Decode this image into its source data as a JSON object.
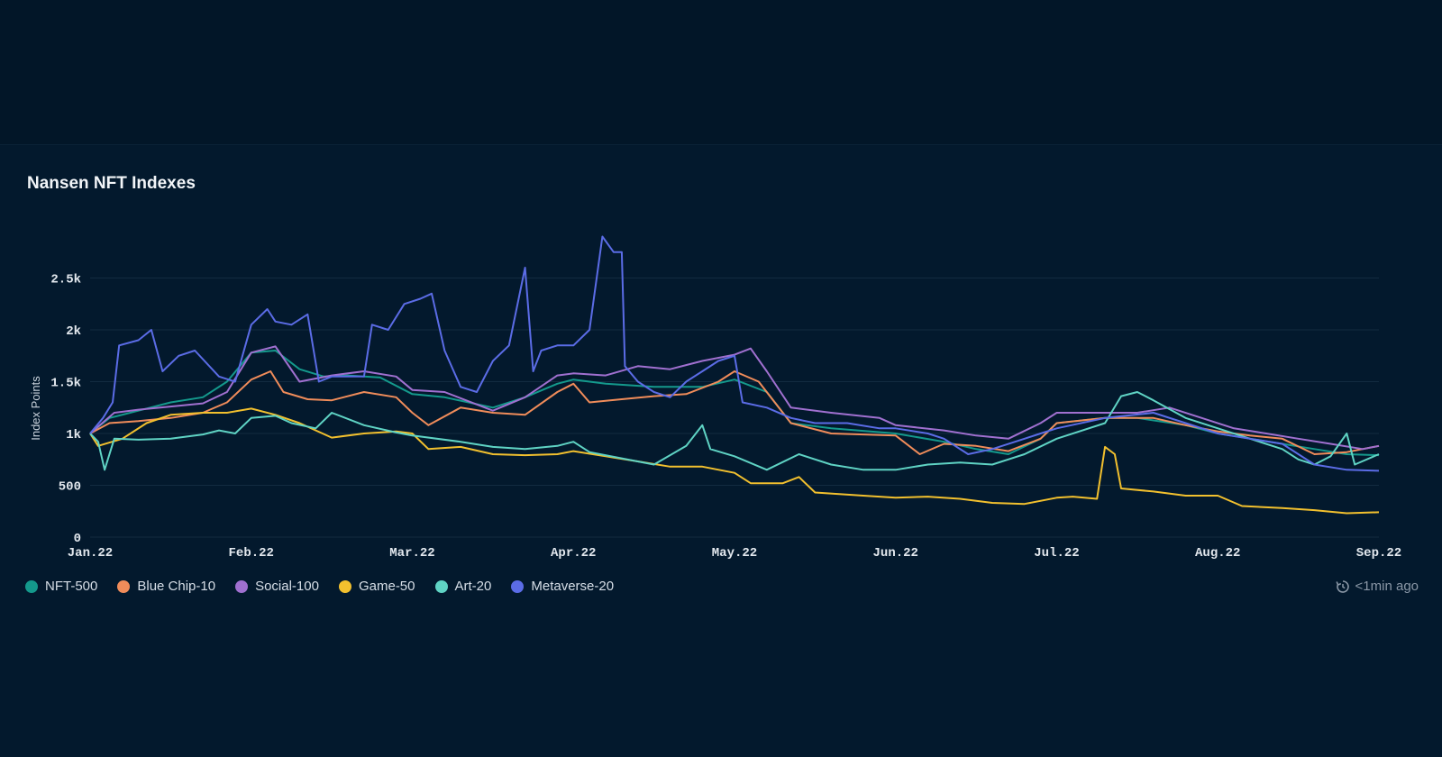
{
  "chart_data": {
    "type": "line",
    "title": "Nansen NFT Indexes",
    "ylabel": "Index Points",
    "xlabel": "",
    "x_ticks": [
      "Jan.22",
      "Feb.22",
      "Mar.22",
      "Apr.22",
      "May.22",
      "Jun.22",
      "Jul.22",
      "Aug.22",
      "Sep.22"
    ],
    "y_ticks": [
      {
        "value": 0,
        "label": "0"
      },
      {
        "value": 500,
        "label": "500"
      },
      {
        "value": 1000,
        "label": "1k"
      },
      {
        "value": 1500,
        "label": "1.5k"
      },
      {
        "value": 2000,
        "label": "2k"
      },
      {
        "value": 2500,
        "label": "2.5k"
      }
    ],
    "ylim": [
      0,
      3000
    ],
    "xlim": [
      0,
      8
    ],
    "grid": true,
    "legend_position": "bottom-left",
    "series": [
      {
        "name": "NFT-500",
        "color": "#14998c",
        "points": [
          [
            0,
            1000
          ],
          [
            0.12,
            1150
          ],
          [
            0.3,
            1220
          ],
          [
            0.5,
            1300
          ],
          [
            0.7,
            1350
          ],
          [
            0.85,
            1500
          ],
          [
            1,
            1780
          ],
          [
            1.15,
            1800
          ],
          [
            1.3,
            1620
          ],
          [
            1.45,
            1550
          ],
          [
            1.6,
            1560
          ],
          [
            1.8,
            1540
          ],
          [
            2,
            1380
          ],
          [
            2.2,
            1350
          ],
          [
            2.5,
            1250
          ],
          [
            2.7,
            1350
          ],
          [
            2.9,
            1480
          ],
          [
            3,
            1520
          ],
          [
            3.2,
            1480
          ],
          [
            3.5,
            1450
          ],
          [
            3.8,
            1450
          ],
          [
            4,
            1520
          ],
          [
            4.2,
            1400
          ],
          [
            4.35,
            1100
          ],
          [
            4.6,
            1050
          ],
          [
            5,
            1000
          ],
          [
            5.3,
            920
          ],
          [
            5.5,
            850
          ],
          [
            5.7,
            800
          ],
          [
            5.9,
            950
          ],
          [
            6,
            1100
          ],
          [
            6.3,
            1150
          ],
          [
            6.5,
            1150
          ],
          [
            6.8,
            1080
          ],
          [
            7,
            1000
          ],
          [
            7.2,
            950
          ],
          [
            7.4,
            900
          ],
          [
            7.6,
            850
          ],
          [
            7.8,
            800
          ],
          [
            8,
            790
          ]
        ]
      },
      {
        "name": "Blue Chip-10",
        "color": "#f08c5a",
        "points": [
          [
            0,
            1000
          ],
          [
            0.12,
            1100
          ],
          [
            0.3,
            1120
          ],
          [
            0.5,
            1150
          ],
          [
            0.7,
            1200
          ],
          [
            0.85,
            1300
          ],
          [
            1,
            1520
          ],
          [
            1.12,
            1600
          ],
          [
            1.2,
            1400
          ],
          [
            1.35,
            1330
          ],
          [
            1.5,
            1320
          ],
          [
            1.7,
            1400
          ],
          [
            1.9,
            1350
          ],
          [
            2,
            1200
          ],
          [
            2.1,
            1080
          ],
          [
            2.3,
            1250
          ],
          [
            2.5,
            1200
          ],
          [
            2.7,
            1180
          ],
          [
            2.9,
            1400
          ],
          [
            3,
            1480
          ],
          [
            3.1,
            1300
          ],
          [
            3.3,
            1330
          ],
          [
            3.5,
            1360
          ],
          [
            3.7,
            1380
          ],
          [
            3.9,
            1500
          ],
          [
            4,
            1600
          ],
          [
            4.15,
            1500
          ],
          [
            4.35,
            1100
          ],
          [
            4.6,
            1000
          ],
          [
            5,
            980
          ],
          [
            5.15,
            800
          ],
          [
            5.3,
            900
          ],
          [
            5.5,
            880
          ],
          [
            5.7,
            830
          ],
          [
            5.9,
            950
          ],
          [
            6,
            1100
          ],
          [
            6.3,
            1150
          ],
          [
            6.6,
            1150
          ],
          [
            6.8,
            1080
          ],
          [
            7,
            1020
          ],
          [
            7.2,
            980
          ],
          [
            7.4,
            950
          ],
          [
            7.6,
            800
          ],
          [
            7.8,
            820
          ],
          [
            8,
            880
          ]
        ]
      },
      {
        "name": "Social-100",
        "color": "#a070d0",
        "points": [
          [
            0,
            1000
          ],
          [
            0.15,
            1200
          ],
          [
            0.3,
            1230
          ],
          [
            0.5,
            1260
          ],
          [
            0.7,
            1290
          ],
          [
            0.85,
            1400
          ],
          [
            1,
            1780
          ],
          [
            1.15,
            1840
          ],
          [
            1.3,
            1500
          ],
          [
            1.5,
            1560
          ],
          [
            1.7,
            1600
          ],
          [
            1.9,
            1550
          ],
          [
            2,
            1420
          ],
          [
            2.2,
            1400
          ],
          [
            2.5,
            1220
          ],
          [
            2.7,
            1350
          ],
          [
            2.9,
            1560
          ],
          [
            3,
            1580
          ],
          [
            3.2,
            1560
          ],
          [
            3.4,
            1650
          ],
          [
            3.6,
            1620
          ],
          [
            3.8,
            1700
          ],
          [
            4,
            1760
          ],
          [
            4.1,
            1820
          ],
          [
            4.2,
            1600
          ],
          [
            4.35,
            1250
          ],
          [
            4.6,
            1200
          ],
          [
            4.9,
            1150
          ],
          [
            5,
            1080
          ],
          [
            5.3,
            1030
          ],
          [
            5.5,
            980
          ],
          [
            5.7,
            950
          ],
          [
            5.9,
            1100
          ],
          [
            6,
            1200
          ],
          [
            6.3,
            1200
          ],
          [
            6.5,
            1200
          ],
          [
            6.7,
            1250
          ],
          [
            6.9,
            1150
          ],
          [
            7.1,
            1050
          ],
          [
            7.3,
            1000
          ],
          [
            7.5,
            950
          ],
          [
            7.7,
            900
          ],
          [
            7.9,
            850
          ],
          [
            8,
            880
          ]
        ]
      },
      {
        "name": "Game-50",
        "color": "#f2c02e",
        "points": [
          [
            0,
            1000
          ],
          [
            0.05,
            880
          ],
          [
            0.2,
            950
          ],
          [
            0.35,
            1100
          ],
          [
            0.5,
            1180
          ],
          [
            0.7,
            1200
          ],
          [
            0.85,
            1200
          ],
          [
            1,
            1240
          ],
          [
            1.15,
            1180
          ],
          [
            1.3,
            1100
          ],
          [
            1.5,
            960
          ],
          [
            1.7,
            1000
          ],
          [
            1.9,
            1020
          ],
          [
            2,
            1000
          ],
          [
            2.1,
            850
          ],
          [
            2.3,
            870
          ],
          [
            2.5,
            800
          ],
          [
            2.7,
            790
          ],
          [
            2.9,
            800
          ],
          [
            3,
            830
          ],
          [
            3.2,
            780
          ],
          [
            3.4,
            730
          ],
          [
            3.6,
            680
          ],
          [
            3.8,
            680
          ],
          [
            4,
            620
          ],
          [
            4.1,
            520
          ],
          [
            4.3,
            520
          ],
          [
            4.4,
            580
          ],
          [
            4.5,
            430
          ],
          [
            4.8,
            400
          ],
          [
            5,
            380
          ],
          [
            5.2,
            390
          ],
          [
            5.4,
            370
          ],
          [
            5.6,
            330
          ],
          [
            5.8,
            320
          ],
          [
            6,
            380
          ],
          [
            6.1,
            390
          ],
          [
            6.25,
            370
          ],
          [
            6.3,
            870
          ],
          [
            6.36,
            800
          ],
          [
            6.4,
            470
          ],
          [
            6.6,
            440
          ],
          [
            6.8,
            400
          ],
          [
            7,
            400
          ],
          [
            7.15,
            300
          ],
          [
            7.4,
            280
          ],
          [
            7.6,
            260
          ],
          [
            7.8,
            230
          ],
          [
            8,
            240
          ]
        ]
      },
      {
        "name": "Art-20",
        "color": "#5fd3c4",
        "points": [
          [
            0,
            1000
          ],
          [
            0.05,
            920
          ],
          [
            0.09,
            650
          ],
          [
            0.15,
            950
          ],
          [
            0.3,
            940
          ],
          [
            0.5,
            950
          ],
          [
            0.7,
            990
          ],
          [
            0.8,
            1030
          ],
          [
            0.9,
            1000
          ],
          [
            1,
            1150
          ],
          [
            1.15,
            1170
          ],
          [
            1.25,
            1100
          ],
          [
            1.4,
            1050
          ],
          [
            1.5,
            1200
          ],
          [
            1.7,
            1080
          ],
          [
            1.9,
            1010
          ],
          [
            2,
            980
          ],
          [
            2.3,
            920
          ],
          [
            2.5,
            870
          ],
          [
            2.7,
            850
          ],
          [
            2.9,
            880
          ],
          [
            3,
            920
          ],
          [
            3.1,
            820
          ],
          [
            3.3,
            760
          ],
          [
            3.5,
            700
          ],
          [
            3.7,
            880
          ],
          [
            3.8,
            1080
          ],
          [
            3.85,
            850
          ],
          [
            4,
            780
          ],
          [
            4.2,
            650
          ],
          [
            4.4,
            800
          ],
          [
            4.6,
            700
          ],
          [
            4.8,
            650
          ],
          [
            5,
            650
          ],
          [
            5.2,
            700
          ],
          [
            5.4,
            720
          ],
          [
            5.6,
            700
          ],
          [
            5.8,
            800
          ],
          [
            6,
            950
          ],
          [
            6.3,
            1100
          ],
          [
            6.4,
            1360
          ],
          [
            6.5,
            1400
          ],
          [
            6.6,
            1320
          ],
          [
            6.8,
            1150
          ],
          [
            7,
            1050
          ],
          [
            7.2,
            950
          ],
          [
            7.4,
            850
          ],
          [
            7.5,
            750
          ],
          [
            7.6,
            700
          ],
          [
            7.7,
            780
          ],
          [
            7.8,
            1000
          ],
          [
            7.85,
            700
          ],
          [
            8,
            800
          ]
        ]
      },
      {
        "name": "Metaverse-20",
        "color": "#5b6ce6",
        "points": [
          [
            0,
            1000
          ],
          [
            0.08,
            1150
          ],
          [
            0.14,
            1300
          ],
          [
            0.18,
            1850
          ],
          [
            0.3,
            1900
          ],
          [
            0.38,
            2000
          ],
          [
            0.45,
            1600
          ],
          [
            0.55,
            1750
          ],
          [
            0.65,
            1800
          ],
          [
            0.8,
            1550
          ],
          [
            0.9,
            1500
          ],
          [
            1,
            2050
          ],
          [
            1.1,
            2200
          ],
          [
            1.15,
            2080
          ],
          [
            1.25,
            2050
          ],
          [
            1.35,
            2150
          ],
          [
            1.42,
            1500
          ],
          [
            1.5,
            1550
          ],
          [
            1.6,
            1550
          ],
          [
            1.7,
            1550
          ],
          [
            1.75,
            2050
          ],
          [
            1.85,
            2000
          ],
          [
            1.95,
            2250
          ],
          [
            2.05,
            2300
          ],
          [
            2.12,
            2350
          ],
          [
            2.2,
            1800
          ],
          [
            2.3,
            1450
          ],
          [
            2.4,
            1400
          ],
          [
            2.5,
            1700
          ],
          [
            2.6,
            1850
          ],
          [
            2.7,
            2600
          ],
          [
            2.75,
            1600
          ],
          [
            2.8,
            1800
          ],
          [
            2.9,
            1850
          ],
          [
            3,
            1850
          ],
          [
            3.1,
            2000
          ],
          [
            3.18,
            2900
          ],
          [
            3.25,
            2750
          ],
          [
            3.3,
            2750
          ],
          [
            3.32,
            1650
          ],
          [
            3.4,
            1500
          ],
          [
            3.5,
            1400
          ],
          [
            3.6,
            1350
          ],
          [
            3.7,
            1500
          ],
          [
            3.8,
            1600
          ],
          [
            3.9,
            1700
          ],
          [
            4,
            1750
          ],
          [
            4.05,
            1300
          ],
          [
            4.2,
            1250
          ],
          [
            4.35,
            1150
          ],
          [
            4.5,
            1100
          ],
          [
            4.7,
            1100
          ],
          [
            4.9,
            1050
          ],
          [
            5,
            1050
          ],
          [
            5.2,
            1000
          ],
          [
            5.3,
            950
          ],
          [
            5.45,
            800
          ],
          [
            5.6,
            850
          ],
          [
            5.8,
            950
          ],
          [
            5.9,
            1000
          ],
          [
            6,
            1050
          ],
          [
            6.3,
            1150
          ],
          [
            6.6,
            1200
          ],
          [
            6.8,
            1100
          ],
          [
            7,
            1000
          ],
          [
            7.2,
            950
          ],
          [
            7.4,
            900
          ],
          [
            7.6,
            700
          ],
          [
            7.8,
            650
          ],
          [
            8,
            640
          ]
        ]
      }
    ]
  },
  "legend": [
    {
      "label": "NFT-500",
      "color": "#14998c"
    },
    {
      "label": "Blue Chip-10",
      "color": "#f08c5a"
    },
    {
      "label": "Social-100",
      "color": "#a070d0"
    },
    {
      "label": "Game-50",
      "color": "#f2c02e"
    },
    {
      "label": "Art-20",
      "color": "#5fd3c4"
    },
    {
      "label": "Metaverse-20",
      "color": "#5b6ce6"
    }
  ],
  "status": {
    "updated": "<1min ago",
    "icon": "refresh-clock-icon"
  }
}
